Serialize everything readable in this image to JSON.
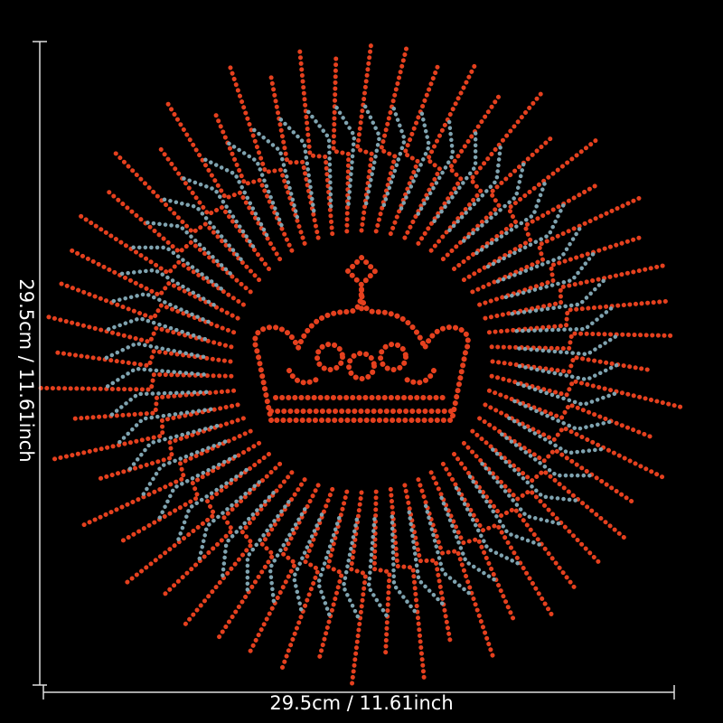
{
  "dimensions": {
    "width_label": "29.5cm / 11.61inch",
    "height_label": "29.5cm / 11.61inch"
  }
}
